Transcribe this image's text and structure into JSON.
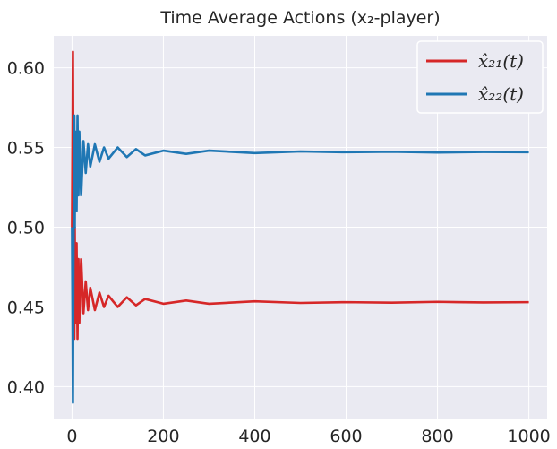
{
  "chart_data": {
    "type": "line",
    "title": "Time Average Actions (x₂-player)",
    "xlabel": "",
    "ylabel": "",
    "xlim": [
      -40,
      1040
    ],
    "ylim": [
      0.38,
      0.62
    ],
    "xticks": [
      0,
      200,
      400,
      600,
      800,
      1000
    ],
    "yticks": [
      0.4,
      0.45,
      0.5,
      0.55,
      0.6
    ],
    "xtick_labels": [
      "0",
      "200",
      "400",
      "600",
      "800",
      "1000"
    ],
    "ytick_labels": [
      "0.40",
      "0.45",
      "0.50",
      "0.55",
      "0.60"
    ],
    "grid": true,
    "legend_position": "top-right",
    "background": "#eaeaf2",
    "series": [
      {
        "name": "x̂₂₁(t)",
        "color": "#d62728",
        "x": [
          0,
          1,
          2,
          3,
          4,
          5,
          6,
          7,
          8,
          10,
          12,
          14,
          16,
          18,
          20,
          25,
          30,
          35,
          40,
          50,
          60,
          70,
          80,
          100,
          120,
          140,
          160,
          200,
          250,
          300,
          400,
          500,
          600,
          700,
          800,
          900,
          1000
        ],
        "values": [
          0.5,
          0.55,
          0.61,
          0.53,
          0.47,
          0.43,
          0.5,
          0.44,
          0.47,
          0.49,
          0.43,
          0.48,
          0.44,
          0.465,
          0.48,
          0.446,
          0.466,
          0.448,
          0.462,
          0.448,
          0.459,
          0.45,
          0.457,
          0.45,
          0.456,
          0.451,
          0.455,
          0.452,
          0.454,
          0.452,
          0.4535,
          0.4525,
          0.453,
          0.4527,
          0.4532,
          0.4528,
          0.453
        ]
      },
      {
        "name": "x̂₂₂(t)",
        "color": "#1f77b4",
        "x": [
          0,
          1,
          2,
          3,
          4,
          5,
          6,
          7,
          8,
          10,
          12,
          14,
          16,
          18,
          20,
          25,
          30,
          35,
          40,
          50,
          60,
          70,
          80,
          100,
          120,
          140,
          160,
          200,
          250,
          300,
          400,
          500,
          600,
          700,
          800,
          900,
          1000
        ],
        "values": [
          0.5,
          0.45,
          0.39,
          0.47,
          0.53,
          0.57,
          0.5,
          0.56,
          0.53,
          0.51,
          0.57,
          0.52,
          0.56,
          0.535,
          0.52,
          0.554,
          0.534,
          0.552,
          0.538,
          0.552,
          0.541,
          0.55,
          0.543,
          0.55,
          0.544,
          0.549,
          0.545,
          0.548,
          0.546,
          0.548,
          0.5465,
          0.5475,
          0.547,
          0.5473,
          0.5468,
          0.5472,
          0.547
        ]
      }
    ]
  }
}
